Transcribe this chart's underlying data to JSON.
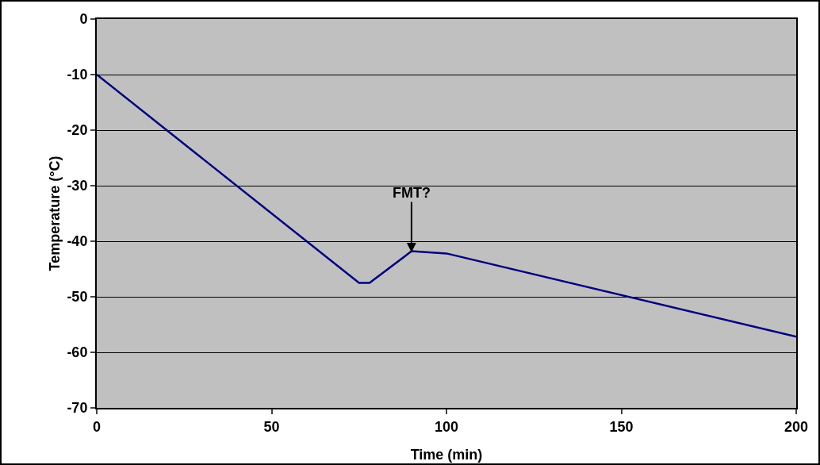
{
  "chart_data": {
    "type": "line",
    "xlabel": "Time (min)",
    "ylabel": "Temperature (°C)",
    "x": [
      0,
      75,
      78,
      90,
      100,
      200
    ],
    "series": [
      {
        "color": "#000080",
        "values": [
          -10,
          -47.5,
          -47.5,
          -41.8,
          -42.2,
          -57.2
        ]
      }
    ],
    "xlim": [
      0,
      200
    ],
    "xticks": [
      0,
      50,
      100,
      150,
      200
    ],
    "ylim": [
      -70,
      0
    ],
    "yticks": [
      -70,
      -60,
      -50,
      -40,
      -30,
      -20,
      -10,
      0
    ],
    "grid": "y",
    "marker": "none",
    "line_style": "solid",
    "annotations": [
      {
        "text": "FMT?",
        "x": 90,
        "y": -42
      }
    ]
  }
}
